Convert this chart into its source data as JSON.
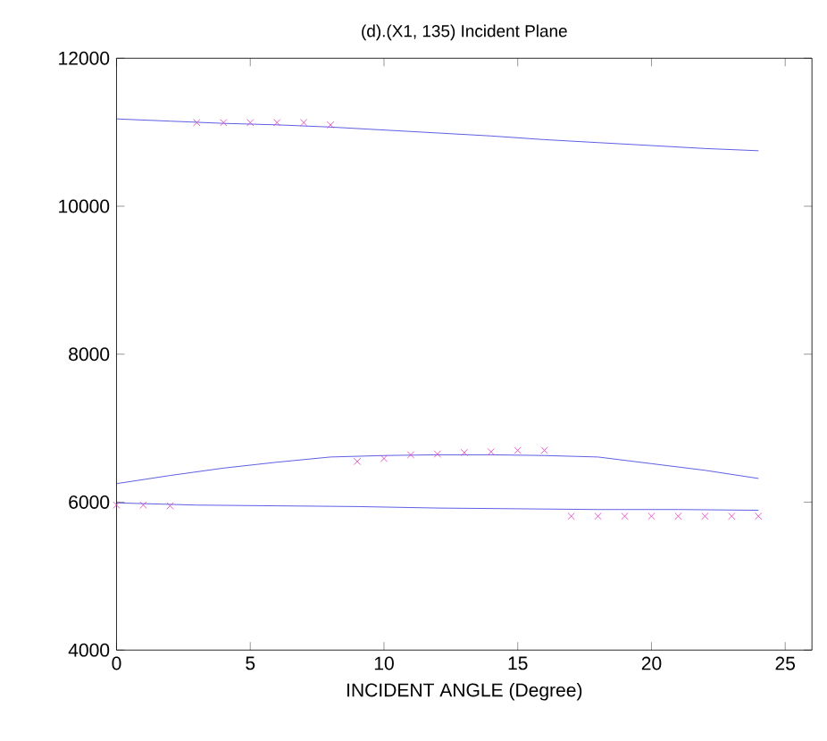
{
  "chart_data": {
    "type": "line",
    "title": "(d).(X1, 135) Incident Plane",
    "xlabel": "INCIDENT ANGLE (Degree)",
    "xlim": [
      0,
      26
    ],
    "ylim": [
      4000,
      12000
    ],
    "xticks": [
      0,
      5,
      10,
      15,
      20,
      25
    ],
    "yticks": [
      4000,
      6000,
      8000,
      10000,
      12000
    ],
    "grid": false,
    "series": [
      {
        "color": "#4040e0",
        "marker": "none",
        "x": [
          0,
          2,
          4,
          6,
          8,
          10,
          12,
          14,
          16,
          18,
          20,
          22,
          24
        ],
        "values": [
          11180,
          11150,
          11120,
          11100,
          11070,
          11030,
          10990,
          10950,
          10900,
          10860,
          10820,
          10780,
          10750
        ]
      },
      {
        "color": "#4040e0",
        "marker": "none",
        "x": [
          0,
          2,
          4,
          6,
          8,
          10,
          12,
          14,
          16,
          18,
          20,
          22,
          24
        ],
        "values": [
          6250,
          6360,
          6460,
          6540,
          6610,
          6630,
          6640,
          6640,
          6630,
          6610,
          6520,
          6430,
          6320
        ]
      },
      {
        "color": "#4040e0",
        "marker": "none",
        "x": [
          0,
          3,
          6,
          9,
          12,
          15,
          18,
          21,
          24
        ],
        "values": [
          5990,
          5960,
          5950,
          5940,
          5920,
          5910,
          5900,
          5900,
          5890
        ]
      },
      {
        "type": "scatter",
        "color": "#e040c0",
        "marker": "cross",
        "x": [
          3,
          4,
          5,
          6,
          7,
          8
        ],
        "values": [
          11130,
          11130,
          11130,
          11130,
          11130,
          11100
        ]
      },
      {
        "type": "scatter",
        "color": "#e040c0",
        "marker": "cross",
        "x": [
          9,
          10,
          11,
          12,
          13,
          14,
          15,
          16
        ],
        "values": [
          6550,
          6590,
          6640,
          6650,
          6670,
          6680,
          6700,
          6700
        ]
      },
      {
        "type": "scatter",
        "color": "#e040c0",
        "marker": "cross",
        "x": [
          0,
          1,
          2,
          17,
          18,
          19,
          20,
          21,
          22,
          23,
          24
        ],
        "values": [
          5960,
          5960,
          5950,
          5810,
          5810,
          5810,
          5810,
          5810,
          5810,
          5810,
          5810
        ]
      }
    ]
  }
}
